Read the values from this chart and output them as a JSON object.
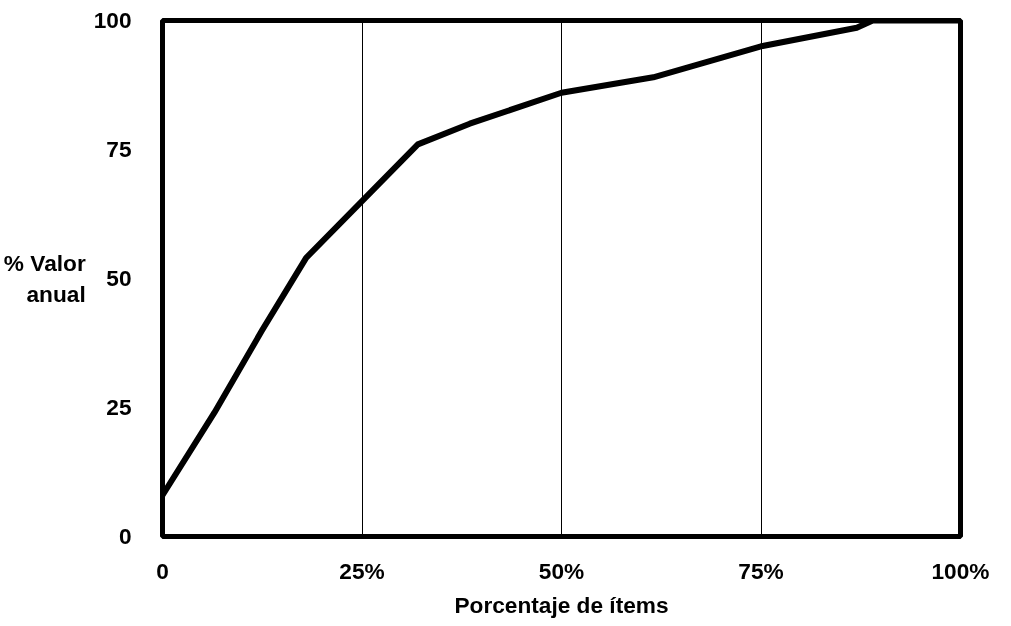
{
  "chart_data": {
    "type": "line",
    "xlabel": "Porcentaje de ítems",
    "ylabel": "% Valor anual",
    "x": [
      0,
      6.5,
      12.5,
      18,
      25,
      32,
      38.5,
      50,
      61.5,
      75,
      87,
      89,
      100
    ],
    "series": [
      {
        "color": "#000000",
        "values": [
          8,
          24,
          40,
          54,
          65,
          76,
          80,
          86,
          89,
          95,
          98.6,
          100,
          100
        ]
      }
    ],
    "xlim": [
      0,
      100
    ],
    "ylim": [
      0,
      100
    ],
    "xticks": [
      {
        "value": 0,
        "label": "0"
      },
      {
        "value": 25,
        "label": "25%"
      },
      {
        "value": 50,
        "label": "50%"
      },
      {
        "value": 75,
        "label": "75%"
      },
      {
        "value": 100,
        "label": "100%"
      }
    ],
    "yticks": [
      0,
      25,
      50,
      75,
      100
    ],
    "grid": "x",
    "marker": "none",
    "line_style": "solid"
  }
}
